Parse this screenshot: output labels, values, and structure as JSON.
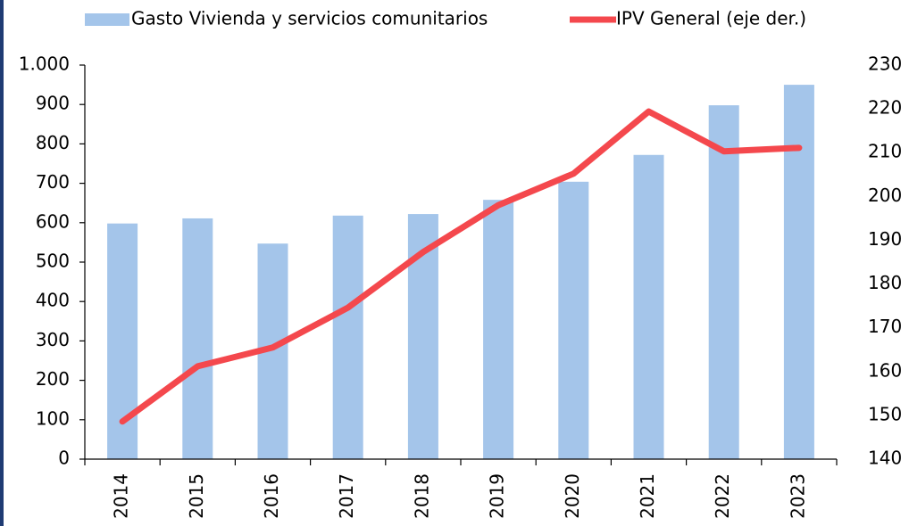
{
  "chart_data": {
    "type": "bar_line",
    "categories": [
      "2014",
      "2015",
      "2016",
      "2017",
      "2018",
      "2019",
      "2020",
      "2021",
      "2022",
      "2023"
    ],
    "series": [
      {
        "name": "Gasto Vivienda y servicios comunitarios",
        "type": "bar",
        "color": "#a4c5ea",
        "values": [
          598,
          611,
          547,
          618,
          622,
          658,
          704,
          772,
          898,
          950
        ]
      },
      {
        "name": "IPV General (eje der.)",
        "type": "line",
        "axis": "y2",
        "color": "#f4484d",
        "values": [
          148.6,
          161.2,
          165.5,
          174.6,
          187.3,
          198,
          205.2,
          219.4,
          210.3,
          211.1
        ]
      }
    ],
    "ylim": [
      0,
      1000
    ],
    "yticks": [
      0,
      100,
      200,
      300,
      400,
      500,
      600,
      700,
      800,
      900,
      {
        "value": 1000,
        "label": "1.000"
      }
    ],
    "y2lim": [
      140,
      230
    ],
    "y2ticks": [
      140,
      150,
      160,
      170,
      180,
      190,
      200,
      210,
      220,
      230
    ],
    "legend": "top"
  }
}
